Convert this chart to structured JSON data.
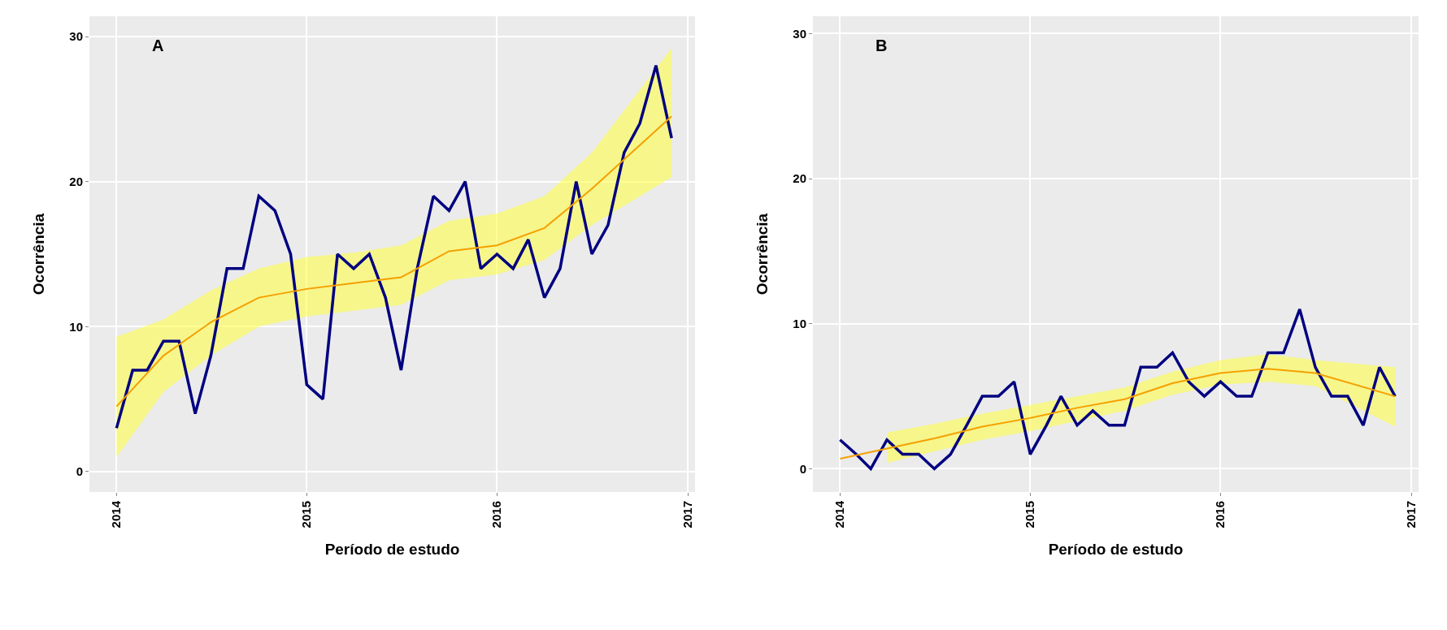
{
  "chart_data": [
    {
      "type": "line",
      "annotations": [
        "A"
      ],
      "xlabel": "Período de estudo",
      "ylabel": "Ocorrência",
      "x": [
        "2014-01",
        "2014-02",
        "2014-03",
        "2014-04",
        "2014-05",
        "2014-06",
        "2014-07",
        "2014-08",
        "2014-09",
        "2014-10",
        "2014-11",
        "2014-12",
        "2015-01",
        "2015-02",
        "2015-03",
        "2015-04",
        "2015-05",
        "2015-06",
        "2015-07",
        "2015-08",
        "2015-09",
        "2015-10",
        "2015-11",
        "2015-12",
        "2016-01",
        "2016-02",
        "2016-03",
        "2016-04",
        "2016-05",
        "2016-06",
        "2016-07",
        "2016-08",
        "2016-09",
        "2016-10",
        "2016-11",
        "2016-12"
      ],
      "series": [
        {
          "color": "#000080",
          "values": [
            3,
            7,
            7,
            9,
            9,
            4,
            8,
            14,
            14,
            19,
            18,
            15,
            6,
            5,
            15,
            14,
            15,
            12,
            7,
            14,
            19,
            18,
            20,
            14,
            15,
            14,
            16,
            12,
            14,
            20,
            15,
            17,
            22,
            24,
            28,
            23
          ]
        },
        {
          "type": "line",
          "color": "#f5a000",
          "x": [
            "2014-01",
            "2014-04",
            "2014-07",
            "2014-10",
            "2015-01",
            "2015-04",
            "2015-07",
            "2015-10",
            "2016-01",
            "2016-04",
            "2016-07",
            "2016-12"
          ],
          "values": [
            4.5,
            8.0,
            10.3,
            12.0,
            12.6,
            13.0,
            13.4,
            15.2,
            15.6,
            16.8,
            19.5,
            24.5
          ],
          "lower": [
            1.0,
            5.5,
            8.0,
            10.0,
            10.7,
            11.1,
            11.5,
            13.2,
            13.6,
            14.6,
            17.0,
            20.3
          ],
          "upper": [
            9.3,
            10.5,
            12.5,
            14.0,
            14.8,
            15.1,
            15.6,
            17.3,
            17.8,
            19.0,
            22.0,
            29.2
          ]
        }
      ],
      "xlim": [
        "2013-11-10",
        "2017-01-15"
      ],
      "xticks": [
        "2014",
        "2015",
        "2016",
        "2017"
      ],
      "ylim": [
        -1.4,
        31.4
      ],
      "yticks": [
        0,
        10,
        20,
        30
      ],
      "grid": true
    },
    {
      "type": "line",
      "annotations": [
        "B"
      ],
      "xlabel": "Período de estudo",
      "ylabel": "Ocorrência",
      "x": [
        "2014-01",
        "2014-02",
        "2014-03",
        "2014-04",
        "2014-05",
        "2014-06",
        "2014-07",
        "2014-08",
        "2014-09",
        "2014-10",
        "2014-11",
        "2014-12",
        "2015-01",
        "2015-02",
        "2015-03",
        "2015-04",
        "2015-05",
        "2015-06",
        "2015-07",
        "2015-08",
        "2015-09",
        "2015-10",
        "2015-11",
        "2015-12",
        "2016-01",
        "2016-02",
        "2016-03",
        "2016-04",
        "2016-05",
        "2016-06",
        "2016-07",
        "2016-08",
        "2016-09",
        "2016-10",
        "2016-11",
        "2016-12"
      ],
      "series": [
        {
          "color": "#000080",
          "values": [
            2,
            1,
            0,
            2,
            1,
            1,
            0,
            1,
            3,
            5,
            5,
            6,
            1,
            3,
            5,
            3,
            4,
            3,
            3,
            7,
            7,
            8,
            6,
            5,
            6,
            5,
            5,
            8,
            8,
            11,
            7,
            5,
            5,
            3,
            7,
            5
          ]
        },
        {
          "type": "line",
          "color": "#f5a000",
          "x": [
            "2014-01",
            "2014-04",
            "2014-07",
            "2014-10",
            "2015-01",
            "2015-04",
            "2015-07",
            "2015-10",
            "2016-01",
            "2016-04",
            "2016-07",
            "2016-12"
          ],
          "values": [
            0.7,
            1.4,
            2.1,
            2.9,
            3.5,
            4.2,
            4.8,
            5.9,
            6.6,
            6.9,
            6.6,
            5.0
          ],
          "lower": [
            null,
            0.4,
            1.2,
            2.0,
            2.6,
            3.3,
            4.0,
            5.1,
            5.8,
            6.0,
            5.7,
            2.9
          ],
          "upper": [
            null,
            2.5,
            3.1,
            3.8,
            4.4,
            5.0,
            5.6,
            6.7,
            7.5,
            7.9,
            7.5,
            7.0
          ]
        }
      ],
      "xlim": [
        "2013-11-10",
        "2017-01-15"
      ],
      "xticks": [
        "2014",
        "2015",
        "2016",
        "2017"
      ],
      "ylim": [
        -1.6,
        31.2
      ],
      "yticks": [
        0,
        10,
        20,
        30
      ],
      "grid": true
    }
  ]
}
